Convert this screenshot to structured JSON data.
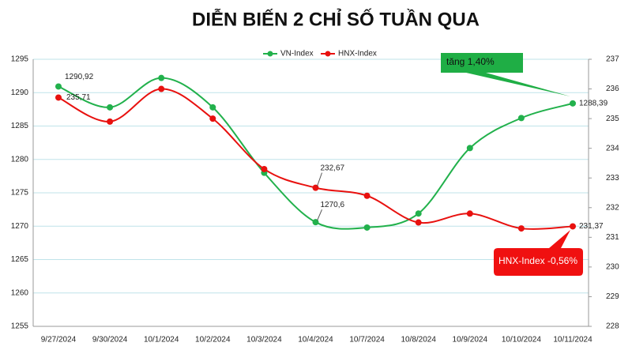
{
  "chart_data": {
    "type": "line",
    "title": "DIỄN BIẾN 2 CHỈ SỐ TUẦN QUA",
    "categories": [
      "9/27/2024",
      "9/30/2024",
      "10/1/2024",
      "10/2/2024",
      "10/3/2024",
      "10/4/2024",
      "10/7/2024",
      "10/8/2024",
      "10/9/2024",
      "10/10/2024",
      "10/11/2024"
    ],
    "series": [
      {
        "name": "VN-Index",
        "color": "#22b14c",
        "axis": "y",
        "values": [
          1290.92,
          1287.8,
          1292.2,
          1287.8,
          1278.0,
          1270.6,
          1269.8,
          1271.9,
          1281.7,
          1286.2,
          1288.39
        ],
        "value_labels": [
          "1290,92",
          null,
          null,
          null,
          null,
          "1270,6",
          null,
          null,
          null,
          null,
          "1288,39"
        ]
      },
      {
        "name": "HNX-Index",
        "color": "#e8110f",
        "axis": "y2",
        "values": [
          235.71,
          234.9,
          236.0,
          235.0,
          233.3,
          232.67,
          232.4,
          231.5,
          231.8,
          231.3,
          231.37
        ],
        "value_labels": [
          "235,71",
          null,
          null,
          null,
          null,
          "232,67",
          null,
          null,
          null,
          null,
          "231,37"
        ]
      }
    ],
    "ylim": [
      1255,
      1295
    ],
    "yticks": [
      1255,
      1260,
      1265,
      1270,
      1275,
      1280,
      1285,
      1290,
      1295
    ],
    "y2lim": [
      228,
      237
    ],
    "y2ticks": [
      228,
      229,
      230,
      231,
      232,
      233,
      234,
      235,
      236,
      237
    ],
    "grid": true,
    "legend": "top",
    "annotations": [
      {
        "text": "tăng 1,40%",
        "color": "#1fae45"
      },
      {
        "text": "HNX-Index -0,56%",
        "color": "#f01010"
      }
    ]
  }
}
